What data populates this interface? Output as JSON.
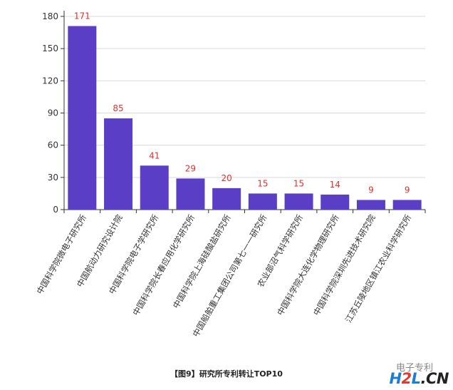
{
  "chart_data": {
    "type": "bar",
    "categories": [
      "中国科学院微电子研究所",
      "中国航动力研究设计院",
      "中国科学院电子学研究所",
      "中国科学院长春应用化学研究所",
      "中国科学院上海硅酸盐研究所",
      "中国船舶重工集团公司第七一一研究所",
      "农业部沼气科学研究所",
      "中国科学院大连化学物理研究所",
      "中国科学院深圳先进技术研究院",
      "江苏丘陵地区镇江农业科学研究所"
    ],
    "values": [
      171,
      85,
      41,
      29,
      20,
      15,
      15,
      14,
      9,
      9
    ],
    "yticks": [
      0,
      30,
      60,
      90,
      120,
      150,
      180
    ],
    "ylim": [
      0,
      180
    ],
    "grid": true,
    "bar_color": "#5a3fc6",
    "label_color": "#e03030"
  },
  "caption": "【图9】研究所专利转让TOP10",
  "watermark": {
    "brand_h": "H",
    "brand_2": "2",
    "brand_l": "L",
    "brand_cn": ".CN",
    "gray_text": "电子专利"
  }
}
